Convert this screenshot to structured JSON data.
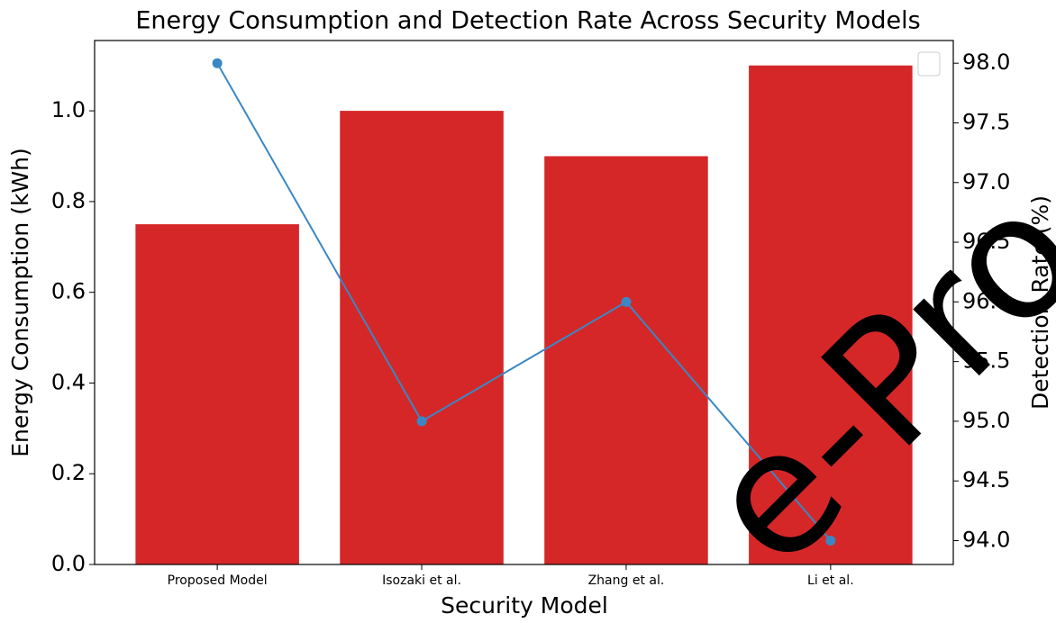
{
  "chart_data": {
    "type": "bar_line",
    "title": "Energy Consumption and Detection Rate Across Security Models",
    "x_label": "Security Model",
    "y_label": "Energy Consumption (kWh)",
    "y2_label": "Detection Rate (%)",
    "categories": [
      "Proposed Model",
      "Isozaki et al.",
      "Zhang et al.",
      "Li et al."
    ],
    "series": [
      {
        "name": "Energy Consumption (kWh)",
        "type": "bar",
        "color": "#d62728",
        "values": [
          0.75,
          1.0,
          0.9,
          1.1
        ]
      },
      {
        "name": "Detection Rate (%)",
        "type": "line",
        "axis": "y2",
        "color": "#3a87c4",
        "values": [
          98.0,
          95.0,
          96.0,
          94.0
        ]
      }
    ],
    "ylim": [
      0,
      1.155
    ],
    "yticks": [
      {
        "value": 0,
        "label": "0.0"
      },
      0.2,
      0.4,
      0.6,
      0.8,
      {
        "value": 1,
        "label": "1.0"
      }
    ],
    "y2lim": [
      93.8,
      98.19
    ],
    "y2ticks": [
      {
        "value": 94,
        "label": "94.0"
      },
      94.5,
      {
        "value": 95,
        "label": "95.0"
      },
      95.5,
      {
        "value": 96,
        "label": "96.0"
      },
      96.5,
      {
        "value": 97,
        "label": "97.0"
      },
      97.5,
      {
        "value": 98,
        "label": "98.0"
      }
    ],
    "y_axis_color": "#d62728",
    "y2_axis_color": "#3a87c4",
    "watermark": "e-Pro"
  }
}
